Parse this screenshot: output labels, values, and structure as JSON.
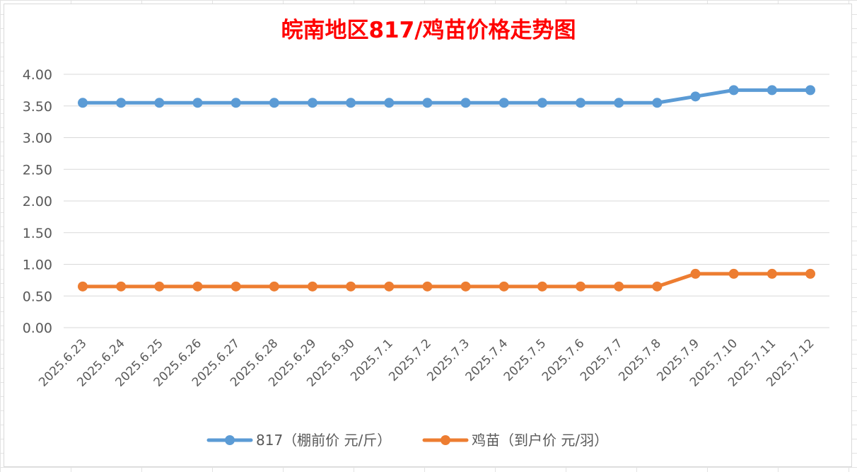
{
  "colors": {
    "series_817": "#5b9bd5",
    "series_chick": "#ed7d31",
    "title": "#ff0000",
    "grid": "#d9d9d9",
    "axis_text": "#595959"
  },
  "chart_data": {
    "type": "line",
    "title": "皖南地区817/鸡苗价格走势图",
    "xlabel": "",
    "ylabel": "",
    "ylim": [
      0,
      4
    ],
    "y_ticks": [
      "0.00",
      "0.50",
      "1.00",
      "1.50",
      "2.00",
      "2.50",
      "3.00",
      "3.50",
      "4.00"
    ],
    "grid": true,
    "legend_position": "bottom",
    "categories": [
      "2025.6.23",
      "2025.6.24",
      "2025.6.25",
      "2025.6.26",
      "2025.6.27",
      "2025.6.28",
      "2025.6.29",
      "2025.6.30",
      "2025.7.1",
      "2025.7.2",
      "2025.7.3",
      "2025.7.4",
      "2025.7.5",
      "2025.7.6",
      "2025.7.7",
      "2025.7.8",
      "2025.7.9",
      "2025.7.10",
      "2025.7.11",
      "2025.7.12"
    ],
    "series": [
      {
        "name": "817（棚前价 元/斤）",
        "color": "#5b9bd5",
        "values": [
          3.55,
          3.55,
          3.55,
          3.55,
          3.55,
          3.55,
          3.55,
          3.55,
          3.55,
          3.55,
          3.55,
          3.55,
          3.55,
          3.55,
          3.55,
          3.55,
          3.65,
          3.75,
          3.75,
          3.75
        ]
      },
      {
        "name": "鸡苗（到户价 元/羽）",
        "color": "#ed7d31",
        "values": [
          0.65,
          0.65,
          0.65,
          0.65,
          0.65,
          0.65,
          0.65,
          0.65,
          0.65,
          0.65,
          0.65,
          0.65,
          0.65,
          0.65,
          0.65,
          0.65,
          0.85,
          0.85,
          0.85,
          0.85
        ]
      }
    ]
  }
}
